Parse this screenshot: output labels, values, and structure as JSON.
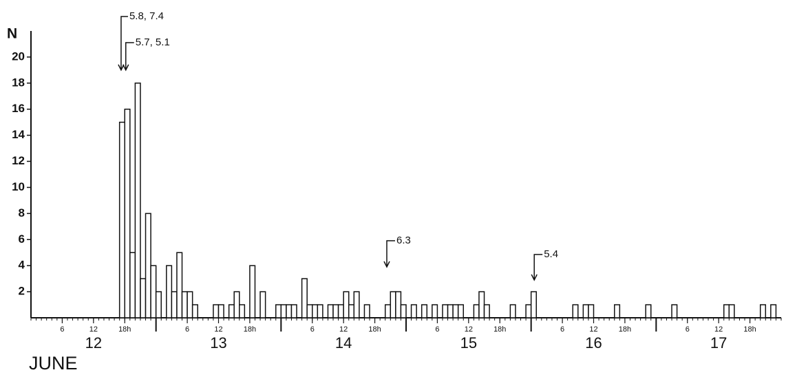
{
  "chart_data": {
    "type": "histogram",
    "ylabel": "N",
    "xlabel": "JUNE",
    "xlim": [
      0,
      144
    ],
    "ylim": [
      0,
      22
    ],
    "yticks": [
      2,
      4,
      6,
      8,
      10,
      12,
      14,
      16,
      18,
      20
    ],
    "xticks": [
      6,
      12,
      {
        "value": 18,
        "label": "18h"
      },
      {
        "value": 30,
        "label": "6"
      },
      {
        "value": 36,
        "label": "12"
      },
      {
        "value": 42,
        "label": "18h"
      },
      {
        "value": 54,
        "label": "6"
      },
      {
        "value": 60,
        "label": "12"
      },
      {
        "value": 66,
        "label": "18h"
      },
      {
        "value": 78,
        "label": "6"
      },
      {
        "value": 84,
        "label": "12"
      },
      {
        "value": 90,
        "label": "18h"
      },
      {
        "value": 102,
        "label": "6"
      },
      {
        "value": 108,
        "label": "12"
      },
      {
        "value": 114,
        "label": "18h"
      },
      {
        "value": 126,
        "label": "6"
      },
      {
        "value": 132,
        "label": "12"
      },
      {
        "value": 138,
        "label": "18h"
      }
    ],
    "days": {
      "starts": [
        0,
        24,
        48,
        72,
        96,
        120
      ],
      "labels": [
        "12",
        "13",
        "14",
        "15",
        "16",
        "17"
      ]
    },
    "x": [
      17,
      18,
      19,
      20,
      21,
      22,
      23,
      24,
      26,
      27,
      28,
      29,
      30,
      31,
      35,
      36,
      38,
      39,
      40,
      42,
      44,
      47,
      48,
      49,
      50,
      52,
      53,
      54,
      55,
      57,
      58,
      59,
      60,
      61,
      62,
      64,
      68,
      69,
      70,
      71,
      73,
      75,
      77,
      79,
      80,
      81,
      82,
      85,
      86,
      87,
      92,
      95,
      96,
      104,
      106,
      107,
      112,
      118,
      123,
      133,
      134,
      140,
      142
    ],
    "values": [
      15,
      16,
      5,
      18,
      3,
      8,
      4,
      2,
      4,
      2,
      5,
      2,
      2,
      1,
      1,
      1,
      1,
      2,
      1,
      4,
      2,
      1,
      1,
      1,
      1,
      3,
      1,
      1,
      1,
      1,
      1,
      1,
      2,
      1,
      2,
      1,
      1,
      2,
      2,
      1,
      1,
      1,
      1,
      1,
      1,
      1,
      1,
      1,
      2,
      1,
      1,
      1,
      2,
      1,
      1,
      1,
      1,
      1,
      1,
      1,
      1,
      1,
      1
    ],
    "annotations": [
      {
        "text": "5.8, 7.4",
        "x": 17.3,
        "y": 19
      },
      {
        "text": "5.7, 5.1",
        "x": 18.2,
        "y": 19
      },
      {
        "text": "6.3",
        "x": 68.3,
        "y": 3.9
      },
      {
        "text": "5.4",
        "x": 96.6,
        "y": 2.9
      }
    ]
  }
}
